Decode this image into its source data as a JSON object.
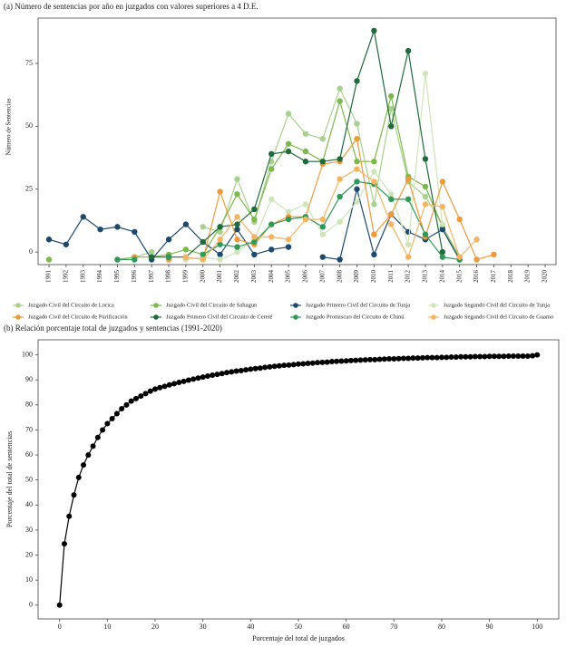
{
  "chart_data": [
    {
      "type": "line",
      "title": "(a) Número de sentencias por año en juzgados con valores superiores a 4 D.E.",
      "y_label": "Número de Sentencias",
      "categories": [
        "1991",
        "1992",
        "1993",
        "1994",
        "1995",
        "1996",
        "1997",
        "1998",
        "1999",
        "2000",
        "2001",
        "2002",
        "2003",
        "2004",
        "2005",
        "2006",
        "2007",
        "2008",
        "2009",
        "2010",
        "2011",
        "2012",
        "2013",
        "2014",
        "2015",
        "2016",
        "2017",
        "2018",
        "2019",
        "2020"
      ],
      "ylim": [
        -5,
        93
      ],
      "yticks": [
        0,
        25,
        50,
        75
      ],
      "series": [
        {
          "name": "Juzgado Civil del Circuito de Lorica",
          "color": "#a9d18e",
          "values": [
            null,
            null,
            null,
            null,
            null,
            -2,
            0,
            null,
            null,
            10,
            8,
            29,
            12,
            36,
            55,
            47,
            45,
            65,
            51,
            19,
            57,
            28,
            22,
            11,
            null,
            null,
            null,
            null,
            null,
            null
          ]
        },
        {
          "name": "Juzgado Civil del Circuito de Sahagun",
          "color": "#7cb84a",
          "values": [
            -3,
            null,
            null,
            null,
            -3,
            -2,
            -2,
            -1,
            1,
            -1,
            10,
            23,
            13,
            33,
            43,
            40,
            36,
            60,
            36,
            36,
            62,
            30,
            26,
            10,
            -2,
            null,
            null,
            null,
            null,
            null
          ]
        },
        {
          "name": "Juzgado Primero Civil del Circuito de Tunja",
          "color": "#1d4a6e",
          "values": [
            5,
            3,
            14,
            9,
            10,
            8,
            -3,
            5,
            11,
            4,
            -1,
            9,
            -1,
            1,
            2,
            null,
            -2,
            -3,
            25,
            -1,
            15,
            8,
            5,
            9,
            -3,
            null,
            null,
            null,
            null,
            null
          ]
        },
        {
          "name": "Juzgado Segundo Civil del Circuito de Tunja",
          "color": "#cfe5b8",
          "values": [
            null,
            null,
            null,
            null,
            null,
            null,
            null,
            null,
            -3,
            -2,
            -3,
            0,
            5,
            21,
            16,
            19,
            7,
            12,
            20,
            32,
            23,
            3,
            71,
            11,
            null,
            null,
            null,
            null,
            null,
            null
          ]
        },
        {
          "name": "Juzgado Civil del Circuito de Purificación",
          "color": "#ee9a3a",
          "values": [
            null,
            null,
            null,
            null,
            null,
            -2,
            null,
            -3,
            null,
            -3,
            24,
            5,
            3,
            11,
            14,
            14,
            35,
            36,
            45,
            7,
            15,
            29,
            6,
            28,
            13,
            -3,
            -1,
            null,
            null,
            null
          ]
        },
        {
          "name": "Juzgado Primero Civil del Circuito de Cereté",
          "color": "#1f6b3b",
          "values": [
            null,
            null,
            null,
            null,
            null,
            null,
            -2,
            -2,
            -2,
            4,
            10,
            11,
            17,
            39,
            40,
            36,
            36,
            37,
            68,
            88,
            50,
            80,
            37,
            0,
            null,
            null,
            null,
            null,
            null,
            null
          ]
        },
        {
          "name": "Juzgado Promiscuo del Circuito de Chinú",
          "color": "#2f9a58",
          "values": [
            null,
            null,
            null,
            null,
            -3,
            -3,
            null,
            -2,
            null,
            -1,
            3,
            2,
            4,
            11,
            13,
            14,
            10,
            22,
            28,
            27,
            21,
            21,
            7,
            -2,
            -3,
            null,
            null,
            null,
            null,
            null
          ]
        },
        {
          "name": "Juzgado Segundo Civil del Circuito de Guamo",
          "color": "#f6b461",
          "values": [
            null,
            null,
            null,
            null,
            null,
            null,
            null,
            null,
            -2,
            -3,
            5,
            14,
            6,
            6,
            5,
            13,
            13,
            29,
            33,
            28,
            11,
            -2,
            19,
            18,
            -2,
            5,
            null,
            null,
            null,
            null
          ]
        }
      ]
    },
    {
      "type": "line",
      "markers": true,
      "color": "#000000",
      "title": "(b) Relación porcentaje total de juzgados y sentencias (1991-2020)",
      "x_label": "Porcentaje del total de juzgados",
      "y_label": "Porcentaje del total de sentencias",
      "xlim": [
        -4.5,
        104.5
      ],
      "xticks": [
        0,
        10,
        20,
        30,
        40,
        50,
        60,
        70,
        80,
        90,
        100
      ],
      "ylim": [
        -5.5,
        106
      ],
      "yticks": [
        0,
        10,
        20,
        30,
        40,
        50,
        60,
        70,
        80,
        90,
        100
      ],
      "x": [
        0,
        1,
        2,
        3,
        4,
        5,
        6,
        7,
        8,
        9,
        10,
        11,
        12,
        13,
        14,
        15,
        16,
        17,
        18,
        19,
        20,
        21,
        22,
        23,
        24,
        25,
        26,
        27,
        28,
        29,
        30,
        31,
        32,
        33,
        34,
        35,
        36,
        37,
        38,
        39,
        40,
        41,
        42,
        43,
        44,
        45,
        46,
        47,
        48,
        49,
        50,
        51,
        52,
        53,
        54,
        55,
        56,
        57,
        58,
        59,
        60,
        61,
        62,
        63,
        64,
        65,
        66,
        67,
        68,
        69,
        70,
        71,
        72,
        73,
        74,
        75,
        76,
        77,
        78,
        79,
        80,
        81,
        82,
        83,
        84,
        85,
        86,
        87,
        88,
        89,
        90,
        91,
        92,
        93,
        94,
        95,
        96,
        97,
        98,
        99,
        100
      ],
      "values": [
        0,
        24.5,
        35.5,
        44,
        51,
        56,
        60,
        63.5,
        67,
        70,
        72.5,
        74.5,
        76.5,
        78.5,
        80,
        81.5,
        82.5,
        83.5,
        84.5,
        85.5,
        86.3,
        86.9,
        87.4,
        88.0,
        88.5,
        89.0,
        89.4,
        89.9,
        90.3,
        90.7,
        91.1,
        91.5,
        91.9,
        92.2,
        92.5,
        92.9,
        93.2,
        93.5,
        93.7,
        94.0,
        94.3,
        94.5,
        94.7,
        95.0,
        95.2,
        95.4,
        95.6,
        95.8,
        95.9,
        96.1,
        96.3,
        96.4,
        96.6,
        96.7,
        96.9,
        97.0,
        97.1,
        97.3,
        97.4,
        97.5,
        97.6,
        97.7,
        97.8,
        97.9,
        98.0,
        98.1,
        98.1,
        98.2,
        98.3,
        98.4,
        98.4,
        98.5,
        98.6,
        98.6,
        98.7,
        98.7,
        98.8,
        98.9,
        98.9,
        98.9,
        99.0,
        99.0,
        99.1,
        99.1,
        99.2,
        99.2,
        99.2,
        99.3,
        99.3,
        99.3,
        99.4,
        99.4,
        99.4,
        99.4,
        99.5,
        99.5,
        99.5,
        99.5,
        99.5,
        99.6,
        100
      ]
    }
  ]
}
